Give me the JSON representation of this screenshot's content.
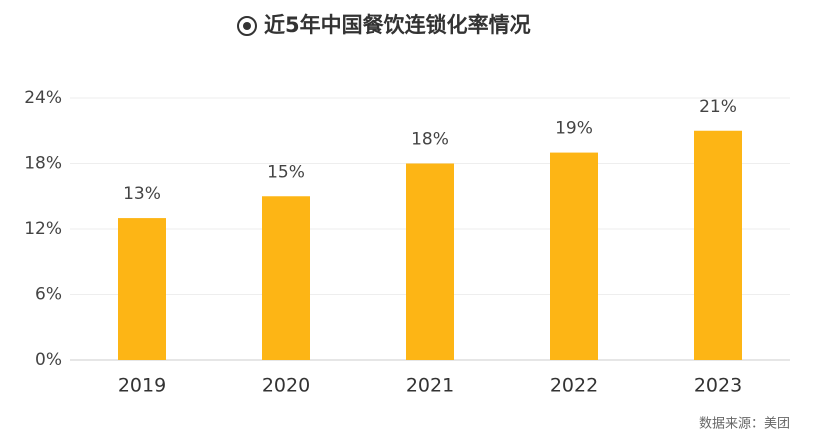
{
  "chart_data": {
    "type": "bar",
    "title": "近5年中国餐饮连锁化率情况",
    "source": "数据来源：美团",
    "categories": [
      "2019",
      "2020",
      "2021",
      "2022",
      "2023"
    ],
    "values": [
      13,
      15,
      18,
      19,
      21
    ],
    "value_labels": [
      "13%",
      "15%",
      "18%",
      "19%",
      "21%"
    ],
    "color": "#fdb515",
    "ylim": [
      0,
      24
    ],
    "yticks": [
      {
        "value": 0,
        "label": "0%"
      },
      {
        "value": 6,
        "label": "6%"
      },
      {
        "value": 12,
        "label": "12%"
      },
      {
        "value": 18,
        "label": "18%"
      },
      {
        "value": 24,
        "label": "24%"
      }
    ],
    "grid": true
  }
}
